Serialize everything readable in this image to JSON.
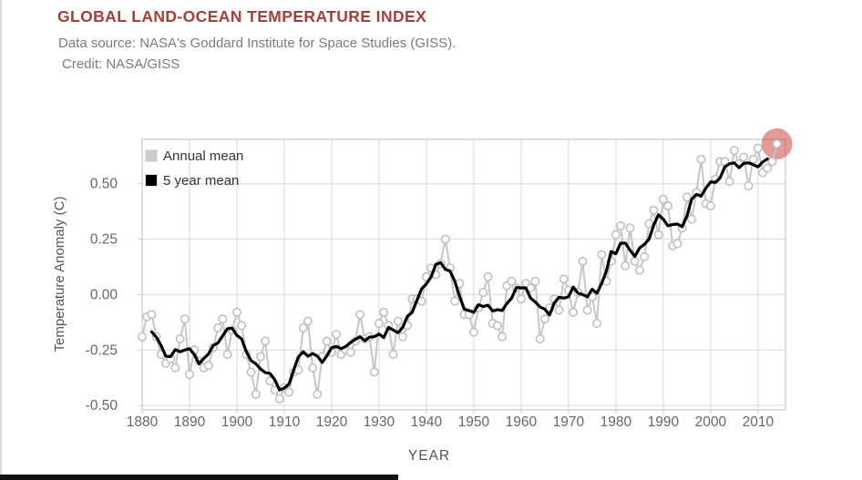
{
  "page": {
    "title": "GLOBAL LAND-OCEAN TEMPERATURE INDEX",
    "subtitle_line1": "Data source: NASA's Goddard Institute for Space Studies (GISS).",
    "subtitle_line2": "Credit: NASA/GISS",
    "title_color": "#a93c36"
  },
  "legend": {
    "annual": "Annual mean",
    "five_year": "5 year mean",
    "position": "top-left-inside"
  },
  "axes": {
    "x_label": "YEAR",
    "y_label": "Temperature Anomaly (C)",
    "x_ticks": [
      1880,
      1890,
      1900,
      1910,
      1920,
      1930,
      1940,
      1950,
      1960,
      1970,
      1980,
      1990,
      2000,
      2010
    ],
    "y_ticks": [
      {
        "label": "0.50",
        "value": 0.5
      },
      {
        "label": "0.25",
        "value": 0.25
      },
      {
        "label": "0.00",
        "value": 0.0
      },
      {
        "label": "-0.25",
        "value": -0.25
      },
      {
        "label": "-0.50",
        "value": -0.5
      }
    ],
    "x_range": [
      1880,
      2015.8
    ],
    "y_range": [
      -0.52,
      0.7
    ],
    "grid": true
  },
  "chart_data": {
    "type": "line",
    "title": "GLOBAL LAND-OCEAN TEMPERATURE INDEX",
    "xlabel": "YEAR",
    "ylabel": "Temperature Anomaly (C)",
    "x_start_year": 1880,
    "x_end_year": 2014,
    "series": [
      {
        "name": "Annual mean",
        "color": "#c6c6c6",
        "marker": "open-circle",
        "values": [
          -0.19,
          -0.1,
          -0.09,
          -0.19,
          -0.27,
          -0.31,
          -0.29,
          -0.33,
          -0.2,
          -0.11,
          -0.36,
          -0.25,
          -0.3,
          -0.33,
          -0.32,
          -0.24,
          -0.15,
          -0.11,
          -0.27,
          -0.16,
          -0.08,
          -0.14,
          -0.27,
          -0.35,
          -0.45,
          -0.28,
          -0.21,
          -0.39,
          -0.43,
          -0.47,
          -0.42,
          -0.44,
          -0.35,
          -0.34,
          -0.15,
          -0.12,
          -0.33,
          -0.45,
          -0.28,
          -0.21,
          -0.26,
          -0.18,
          -0.27,
          -0.25,
          -0.26,
          -0.21,
          -0.09,
          -0.2,
          -0.19,
          -0.35,
          -0.13,
          -0.08,
          -0.14,
          -0.27,
          -0.12,
          -0.19,
          -0.14,
          -0.02,
          -0.02,
          -0.03,
          0.08,
          0.12,
          0.09,
          0.14,
          0.25,
          0.12,
          -0.03,
          0.05,
          -0.09,
          -0.09,
          -0.17,
          -0.06,
          0.01,
          0.08,
          -0.13,
          -0.14,
          -0.19,
          0.04,
          0.06,
          0.03,
          -0.02,
          0.05,
          0.03,
          0.06,
          -0.2,
          -0.11,
          -0.06,
          -0.02,
          -0.07,
          0.07,
          0.02,
          -0.08,
          0.01,
          0.15,
          -0.07,
          -0.01,
          -0.13,
          0.18,
          0.06,
          0.15,
          0.27,
          0.31,
          0.13,
          0.3,
          0.15,
          0.11,
          0.17,
          0.32,
          0.38,
          0.27,
          0.43,
          0.4,
          0.22,
          0.23,
          0.3,
          0.44,
          0.34,
          0.46,
          0.61,
          0.41,
          0.4,
          0.52,
          0.6,
          0.6,
          0.51,
          0.65,
          0.59,
          0.62,
          0.49,
          0.61,
          0.66,
          0.55,
          0.57,
          0.6,
          0.68
        ]
      },
      {
        "name": "5 year mean",
        "color": "#000000",
        "derived": "centered 5-year moving average of Annual mean (1882-2012)"
      }
    ],
    "highlight": {
      "year": 2014,
      "value": 0.68,
      "color": "rgba(198,55,45,0.5)",
      "radius": 17
    }
  },
  "colors": {
    "grid": "#d9d9d9",
    "frame": "#c9c9c9",
    "tick_text": "#666666",
    "axis_text": "#555555",
    "legend_text": "#333333",
    "annual_swatch": "#cbcbcb",
    "five_year_swatch": "#000000"
  }
}
